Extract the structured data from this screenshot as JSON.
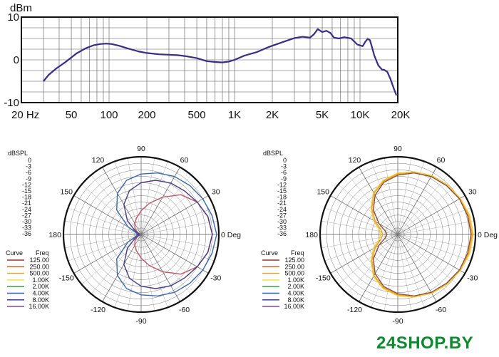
{
  "chart_data": [
    {
      "type": "line",
      "ylabel": "dBm",
      "x_ticks": [
        "20 Hz",
        "50",
        "100",
        "200",
        "500",
        "1K",
        "2K",
        "5K",
        "10K",
        "20K"
      ],
      "x_tick_values": [
        20,
        50,
        100,
        200,
        500,
        1000,
        2000,
        5000,
        10000,
        20000
      ],
      "y_ticks": [
        "10",
        "0",
        "-10"
      ],
      "y_tick_values": [
        10,
        0,
        -10
      ],
      "xlim": [
        20,
        20000
      ],
      "ylim": [
        -10,
        10
      ],
      "x_scale": "log",
      "grid": true,
      "color": "#3b2a86",
      "series": [
        {
          "x": [
            30,
            33,
            38,
            45,
            55,
            65,
            75,
            85,
            95,
            105,
            120,
            140,
            170,
            200,
            250,
            300,
            350,
            400,
            500,
            600,
            700,
            800,
            900,
            1000,
            1200,
            1500,
            1800,
            2000,
            2500,
            3000,
            3500,
            4000,
            4300,
            4600,
            5000,
            5400,
            5800,
            6200,
            6800,
            7500,
            8500,
            9500,
            10500,
            11000,
            11500,
            12000,
            12500,
            13000,
            14000,
            15000,
            15500,
            16500,
            17500,
            18500,
            19500
          ],
          "y": [
            -5,
            -3.5,
            -2,
            -0.5,
            1.5,
            2.7,
            3.4,
            3.7,
            3.8,
            3.7,
            3.3,
            2.7,
            2,
            1.6,
            1.3,
            1.2,
            1.1,
            0.9,
            0.4,
            -0.3,
            -0.5,
            -0.6,
            -0.4,
            0,
            1,
            1.8,
            2.8,
            3.3,
            4.3,
            5.1,
            5.4,
            5.2,
            6,
            7.2,
            6.5,
            6.8,
            6.3,
            5.2,
            5,
            5.3,
            5,
            3.6,
            3.2,
            4.2,
            4.9,
            4.6,
            2.8,
            1,
            -1.3,
            -2.3,
            -2.3,
            -2.8,
            -4.5,
            -6.5,
            -8.3
          ]
        }
      ]
    },
    {
      "type": "polar",
      "radial_label": "dBSPL",
      "radial_ticks": [
        "0",
        "-3",
        "-6",
        "-9",
        "-12",
        "-15",
        "-18",
        "-21",
        "-24",
        "-27",
        "-30",
        "-33",
        "-36"
      ],
      "radial_tick_values": [
        0,
        -3,
        -6,
        -9,
        -12,
        -15,
        -18,
        -21,
        -24,
        -27,
        -30,
        -33,
        -36
      ],
      "rlim": [
        -36,
        0
      ],
      "angle_ticks": [
        "0 Deg",
        "30",
        "60",
        "90",
        "120",
        "150",
        "180",
        "-150",
        "-120",
        "-90",
        "-60",
        "-30"
      ],
      "angle_tick_values": [
        0,
        30,
        60,
        90,
        120,
        150,
        180,
        -150,
        -120,
        -90,
        -60,
        -30
      ],
      "legend": {
        "position": "left",
        "header_curve": "Curve",
        "header_freq": "Freq",
        "entries": [
          {
            "freq": "125.00",
            "color": "#a0322a"
          },
          {
            "freq": "250.00",
            "color": "#c85a20"
          },
          {
            "freq": "500.00",
            "color": "#e3a21a"
          },
          {
            "freq": "1.00K",
            "color": "#f2df2a"
          },
          {
            "freq": "2.00K",
            "color": "#2e9c3a"
          },
          {
            "freq": "4.00K",
            "color": "#2a5fc8"
          },
          {
            "freq": "8.00K",
            "color": "#2a2a8a"
          },
          {
            "freq": "16.00K",
            "color": "#7a3aa0"
          }
        ]
      },
      "series": [
        {
          "name": "125.00",
          "color": "#c0566a",
          "angles": [
            0,
            15,
            30,
            45,
            60,
            75,
            90,
            105,
            120,
            135,
            150,
            165,
            180
          ],
          "values": [
            -3,
            -4,
            -6,
            -10,
            -16,
            -21,
            -25,
            -28,
            -30,
            -32,
            -34,
            -35,
            -35
          ]
        },
        {
          "name": "8.00K",
          "color": "#4a3a86",
          "angles": [
            0,
            15,
            30,
            45,
            60,
            75,
            90,
            105,
            120,
            135,
            150,
            165,
            180
          ],
          "values": [
            -3,
            -4,
            -6,
            -7.5,
            -8.5,
            -10,
            -12,
            -15,
            -20,
            -27,
            -33,
            -35,
            -34
          ]
        },
        {
          "name": "4.00K",
          "color": "#3a6aa8",
          "angles": [
            0,
            15,
            30,
            45,
            60,
            75,
            90,
            105,
            120,
            135,
            150,
            165,
            180
          ],
          "values": [
            -1,
            -2,
            -3,
            -4,
            -5,
            -6.5,
            -8,
            -10,
            -14,
            -20,
            -29,
            -34,
            -34
          ]
        }
      ]
    },
    {
      "type": "polar",
      "radial_label": "dBSPL",
      "radial_ticks": [
        "0",
        "-3",
        "-6",
        "-9",
        "-12",
        "-15",
        "-18",
        "-21",
        "-24",
        "-27",
        "-30",
        "-33",
        "-36"
      ],
      "radial_tick_values": [
        0,
        -3,
        -6,
        -9,
        -12,
        -15,
        -18,
        -21,
        -24,
        -27,
        -30,
        -33,
        -36
      ],
      "rlim": [
        -36,
        0
      ],
      "angle_ticks": [
        "0 Deg",
        "30",
        "60",
        "90",
        "120",
        "150",
        "180",
        "-150",
        "-120",
        "-90",
        "-60",
        "-30"
      ],
      "angle_tick_values": [
        0,
        30,
        60,
        90,
        120,
        150,
        180,
        -150,
        -120,
        -90,
        -60,
        -30
      ],
      "legend": {
        "position": "left",
        "header_curve": "Curve",
        "header_freq": "Freq",
        "entries": [
          {
            "freq": "125.00",
            "color": "#a0322a"
          },
          {
            "freq": "250.00",
            "color": "#c85a20"
          },
          {
            "freq": "500.00",
            "color": "#e3a21a"
          },
          {
            "freq": "1.00K",
            "color": "#f2df2a"
          },
          {
            "freq": "2.00K",
            "color": "#2e9c3a"
          },
          {
            "freq": "4.00K",
            "color": "#2a5fc8"
          },
          {
            "freq": "8.00K",
            "color": "#2a2a8a"
          },
          {
            "freq": "16.00K",
            "color": "#7a3aa0"
          }
        ]
      },
      "series": [
        {
          "name": "125.00",
          "color": "#8a4a3a",
          "angles": [
            0,
            15,
            30,
            45,
            60,
            75,
            90,
            105,
            120,
            135,
            150,
            165,
            180
          ],
          "values": [
            -2,
            -2.5,
            -3,
            -4,
            -5,
            -6.5,
            -8.5,
            -11,
            -15,
            -20,
            -26,
            -30,
            -31
          ]
        },
        {
          "name": "500.00",
          "color": "#e8a020",
          "angles": [
            0,
            15,
            30,
            45,
            60,
            75,
            90,
            105,
            120,
            135,
            150,
            165,
            180
          ],
          "values": [
            -1.5,
            -2,
            -2.5,
            -3.5,
            -4.5,
            -6,
            -8,
            -10.5,
            -14,
            -19,
            -24,
            -28,
            -29
          ]
        },
        {
          "name": "1.00K",
          "color": "#f0c838",
          "angles": [
            0,
            15,
            30,
            45,
            60,
            75,
            90,
            105,
            120,
            135,
            150,
            165,
            180
          ],
          "values": [
            -1,
            -1.5,
            -2.5,
            -3.5,
            -4.5,
            -6,
            -7.5,
            -10,
            -13.5,
            -18.5,
            -23,
            -27,
            -28
          ]
        }
      ]
    }
  ],
  "watermark": "24SHOP.BY"
}
